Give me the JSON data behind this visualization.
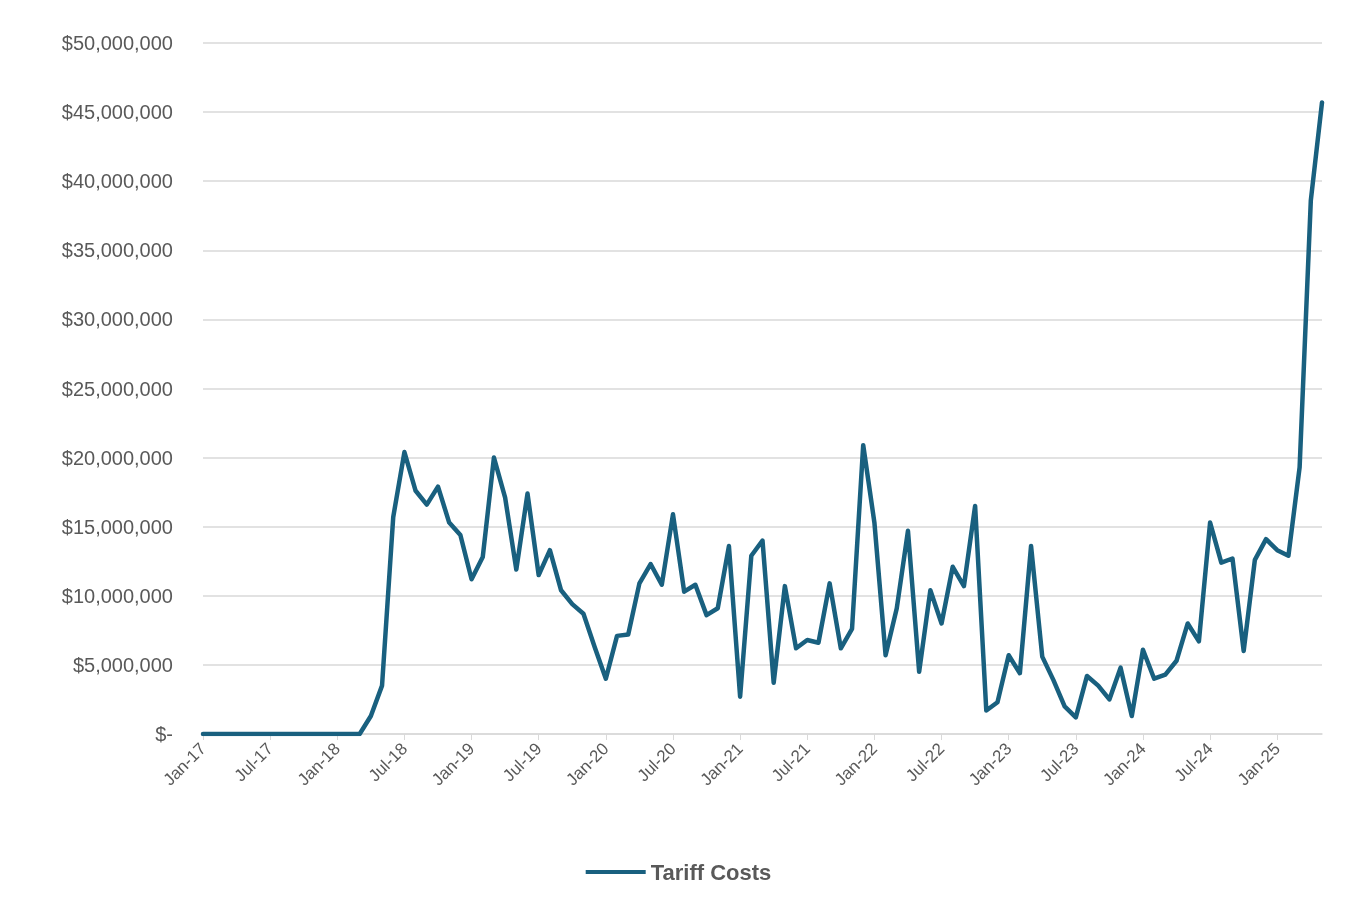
{
  "chart_data": {
    "type": "line",
    "categories": [
      "Jan-17",
      null,
      null,
      null,
      null,
      null,
      "Jul-17",
      null,
      null,
      null,
      null,
      null,
      "Jan-18",
      null,
      null,
      null,
      null,
      null,
      "Jul-18",
      null,
      null,
      null,
      null,
      null,
      "Jan-19",
      null,
      null,
      null,
      null,
      null,
      "Jul-19",
      null,
      null,
      null,
      null,
      null,
      "Jan-20",
      null,
      null,
      null,
      null,
      null,
      "Jul-20",
      null,
      null,
      null,
      null,
      null,
      "Jan-21",
      null,
      null,
      null,
      null,
      null,
      "Jul-21",
      null,
      null,
      null,
      null,
      null,
      "Jan-22",
      null,
      null,
      null,
      null,
      null,
      "Jul-22",
      null,
      null,
      null,
      null,
      null,
      "Jan-23",
      null,
      null,
      null,
      null,
      null,
      "Jul-23",
      null,
      null,
      null,
      null,
      null,
      "Jan-24",
      null,
      null,
      null,
      null,
      null,
      "Jul-24",
      null,
      null,
      null,
      null,
      null,
      "Jan-25",
      null,
      null,
      null,
      null
    ],
    "series": [
      {
        "name": "Tariff Costs",
        "color": "#19607f",
        "values": [
          0,
          0,
          0,
          0,
          0,
          0,
          0,
          0,
          0,
          0,
          0,
          0,
          0,
          0,
          0,
          1300000,
          3500000,
          15700000,
          20400000,
          17600000,
          16600000,
          17900000,
          15300000,
          14400000,
          11200000,
          12800000,
          20000000,
          17100000,
          11900000,
          17400000,
          11500000,
          13300000,
          10400000,
          9400000,
          8700000,
          6300000,
          4000000,
          7100000,
          7200000,
          10900000,
          12300000,
          10800000,
          15900000,
          10300000,
          10800000,
          8600000,
          9100000,
          13600000,
          2700000,
          12900000,
          14000000,
          3700000,
          10700000,
          6200000,
          6800000,
          6600000,
          10900000,
          6200000,
          7600000,
          20900000,
          15300000,
          5700000,
          9100000,
          14700000,
          4500000,
          10400000,
          8000000,
          12100000,
          10700000,
          16500000,
          1700000,
          2300000,
          5700000,
          4400000,
          13600000,
          5600000,
          3900000,
          2000000,
          1200000,
          4200000,
          3500000,
          2500000,
          4800000,
          1300000,
          6100000,
          4000000,
          4300000,
          5300000,
          8000000,
          6700000,
          15300000,
          12400000,
          12700000,
          6000000,
          12600000,
          14100000,
          13300000,
          12900000,
          19300000,
          38600000,
          45700000
        ]
      }
    ],
    "ylim": [
      0,
      50000000
    ],
    "yticks": [
      {
        "value": 0,
        "label": "$-"
      },
      {
        "value": 5000000,
        "label": "$5,000,000"
      },
      {
        "value": 10000000,
        "label": "$10,000,000"
      },
      {
        "value": 15000000,
        "label": "$15,000,000"
      },
      {
        "value": 20000000,
        "label": "$20,000,000"
      },
      {
        "value": 25000000,
        "label": "$25,000,000"
      },
      {
        "value": 30000000,
        "label": "$30,000,000"
      },
      {
        "value": 35000000,
        "label": "$35,000,000"
      },
      {
        "value": 40000000,
        "label": "$40,000,000"
      },
      {
        "value": 45000000,
        "label": "$45,000,000"
      },
      {
        "value": 50000000,
        "label": "$50,000,000"
      }
    ],
    "grid": "y",
    "legend": "bottom",
    "marker": "none",
    "line_style": "solid"
  }
}
